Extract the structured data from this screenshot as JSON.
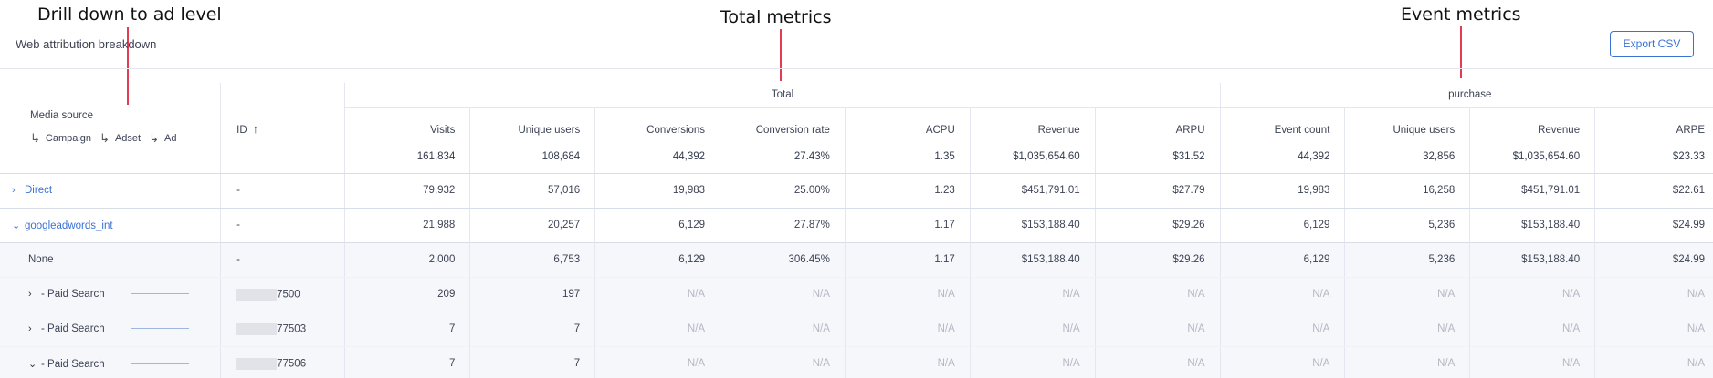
{
  "annotations": {
    "drill_down": "Drill down to ad level",
    "total_metrics": "Total metrics",
    "event_metrics": "Event metrics"
  },
  "header": {
    "title": "Web attribution breakdown",
    "export_label": "Export CSV"
  },
  "table": {
    "group_headers": {
      "total": "Total",
      "event": "purchase"
    },
    "media_header": {
      "title": "Media source",
      "drill_levels": [
        "Campaign",
        "Adset",
        "Ad"
      ]
    },
    "id_header": "ID",
    "columns": [
      {
        "label": "Visits",
        "total": "161,834"
      },
      {
        "label": "Unique users",
        "total": "108,684"
      },
      {
        "label": "Conversions",
        "total": "44,392"
      },
      {
        "label": "Conversion rate",
        "total": "27.43%"
      },
      {
        "label": "ACPU",
        "total": "1.35"
      },
      {
        "label": "Revenue",
        "total": "$1,035,654.60"
      },
      {
        "label": "ARPU",
        "total": "$31.52"
      },
      {
        "label": "Event count",
        "total": "44,392"
      },
      {
        "label": "Unique users",
        "total": "32,856"
      },
      {
        "label": "Revenue",
        "total": "$1,035,654.60"
      },
      {
        "label": "ARPE",
        "total": "$23.33"
      }
    ],
    "rows": [
      {
        "media": "Direct",
        "id": "-",
        "values": [
          "79,932",
          "57,016",
          "19,983",
          "25.00%",
          "1.23",
          "$451,791.01",
          "$27.79",
          "19,983",
          "16,258",
          "$451,791.01",
          "$22.61"
        ]
      },
      {
        "media": "googleadwords_int",
        "id": "-",
        "values": [
          "21,988",
          "20,257",
          "6,129",
          "27.87%",
          "1.17",
          "$153,188.40",
          "$29.26",
          "6,129",
          "5,236",
          "$153,188.40",
          "$24.99"
        ]
      },
      {
        "media": "None",
        "id": "-",
        "values": [
          "2,000",
          "6,753",
          "6,129",
          "306.45%",
          "1.17",
          "$153,188.40",
          "$29.26",
          "6,129",
          "5,236",
          "$153,188.40",
          "$24.99"
        ]
      },
      {
        "media": "- Paid Search",
        "id": "7500",
        "values": [
          "209",
          "197",
          "N/A",
          "N/A",
          "N/A",
          "N/A",
          "N/A",
          "N/A",
          "N/A",
          "N/A",
          "N/A"
        ]
      },
      {
        "media": "- Paid Search",
        "id": "77503",
        "values": [
          "7",
          "7",
          "N/A",
          "N/A",
          "N/A",
          "N/A",
          "N/A",
          "N/A",
          "N/A",
          "N/A",
          "N/A"
        ]
      },
      {
        "media": "- Paid Search",
        "id": "77506",
        "values": [
          "7",
          "7",
          "N/A",
          "N/A",
          "N/A",
          "N/A",
          "N/A",
          "N/A",
          "N/A",
          "N/A",
          "N/A"
        ]
      }
    ]
  },
  "colors": {
    "accent": "#3b73d3",
    "annotation_line": "#e23b52",
    "na_text": "#b4b8c4"
  }
}
